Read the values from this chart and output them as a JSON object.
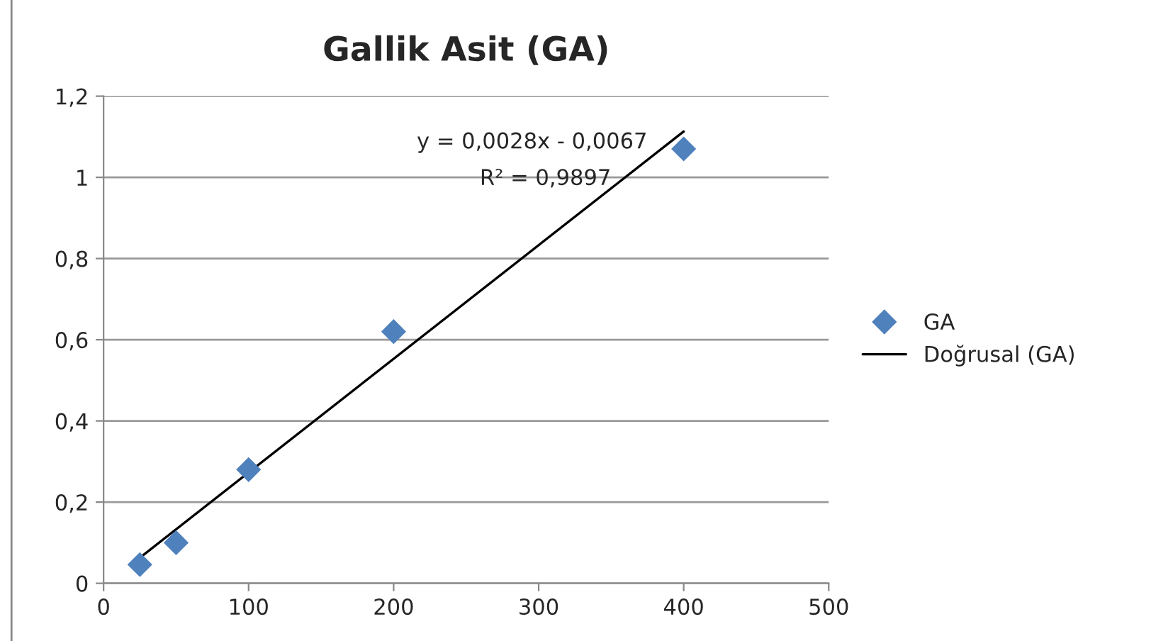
{
  "chart_data": {
    "type": "scatter",
    "title": "Gallik Asit (GA)",
    "series": [
      {
        "name": "GA",
        "color": "#4f81bd",
        "marker": "diamond",
        "x": [
          25,
          50,
          100,
          200,
          400
        ],
        "values": [
          0.046,
          0.1,
          0.28,
          0.62,
          1.07
        ]
      },
      {
        "name": "Doğrusal (GA)",
        "type": "line",
        "color": "#000000",
        "marker": "none",
        "line_style": "solid",
        "x": [
          25,
          400
        ],
        "values": [
          0.063,
          1.113
        ]
      }
    ],
    "xlim": [
      0,
      500
    ],
    "xticks": [
      0,
      100,
      200,
      300,
      400,
      500
    ],
    "ylim": [
      0,
      1.2
    ],
    "yticks": [
      0,
      {
        "value": 0.2,
        "label": "0,2"
      },
      {
        "value": 0.4,
        "label": "0,4"
      },
      {
        "value": 0.6,
        "label": "0,6"
      },
      {
        "value": 0.8,
        "label": "0,8"
      },
      1,
      {
        "value": 1.2,
        "label": "1,2"
      }
    ],
    "annotations": [
      "y = 0,0028x - 0,0067",
      "R² = 0,9897"
    ],
    "grid": "y",
    "legend": "right"
  }
}
